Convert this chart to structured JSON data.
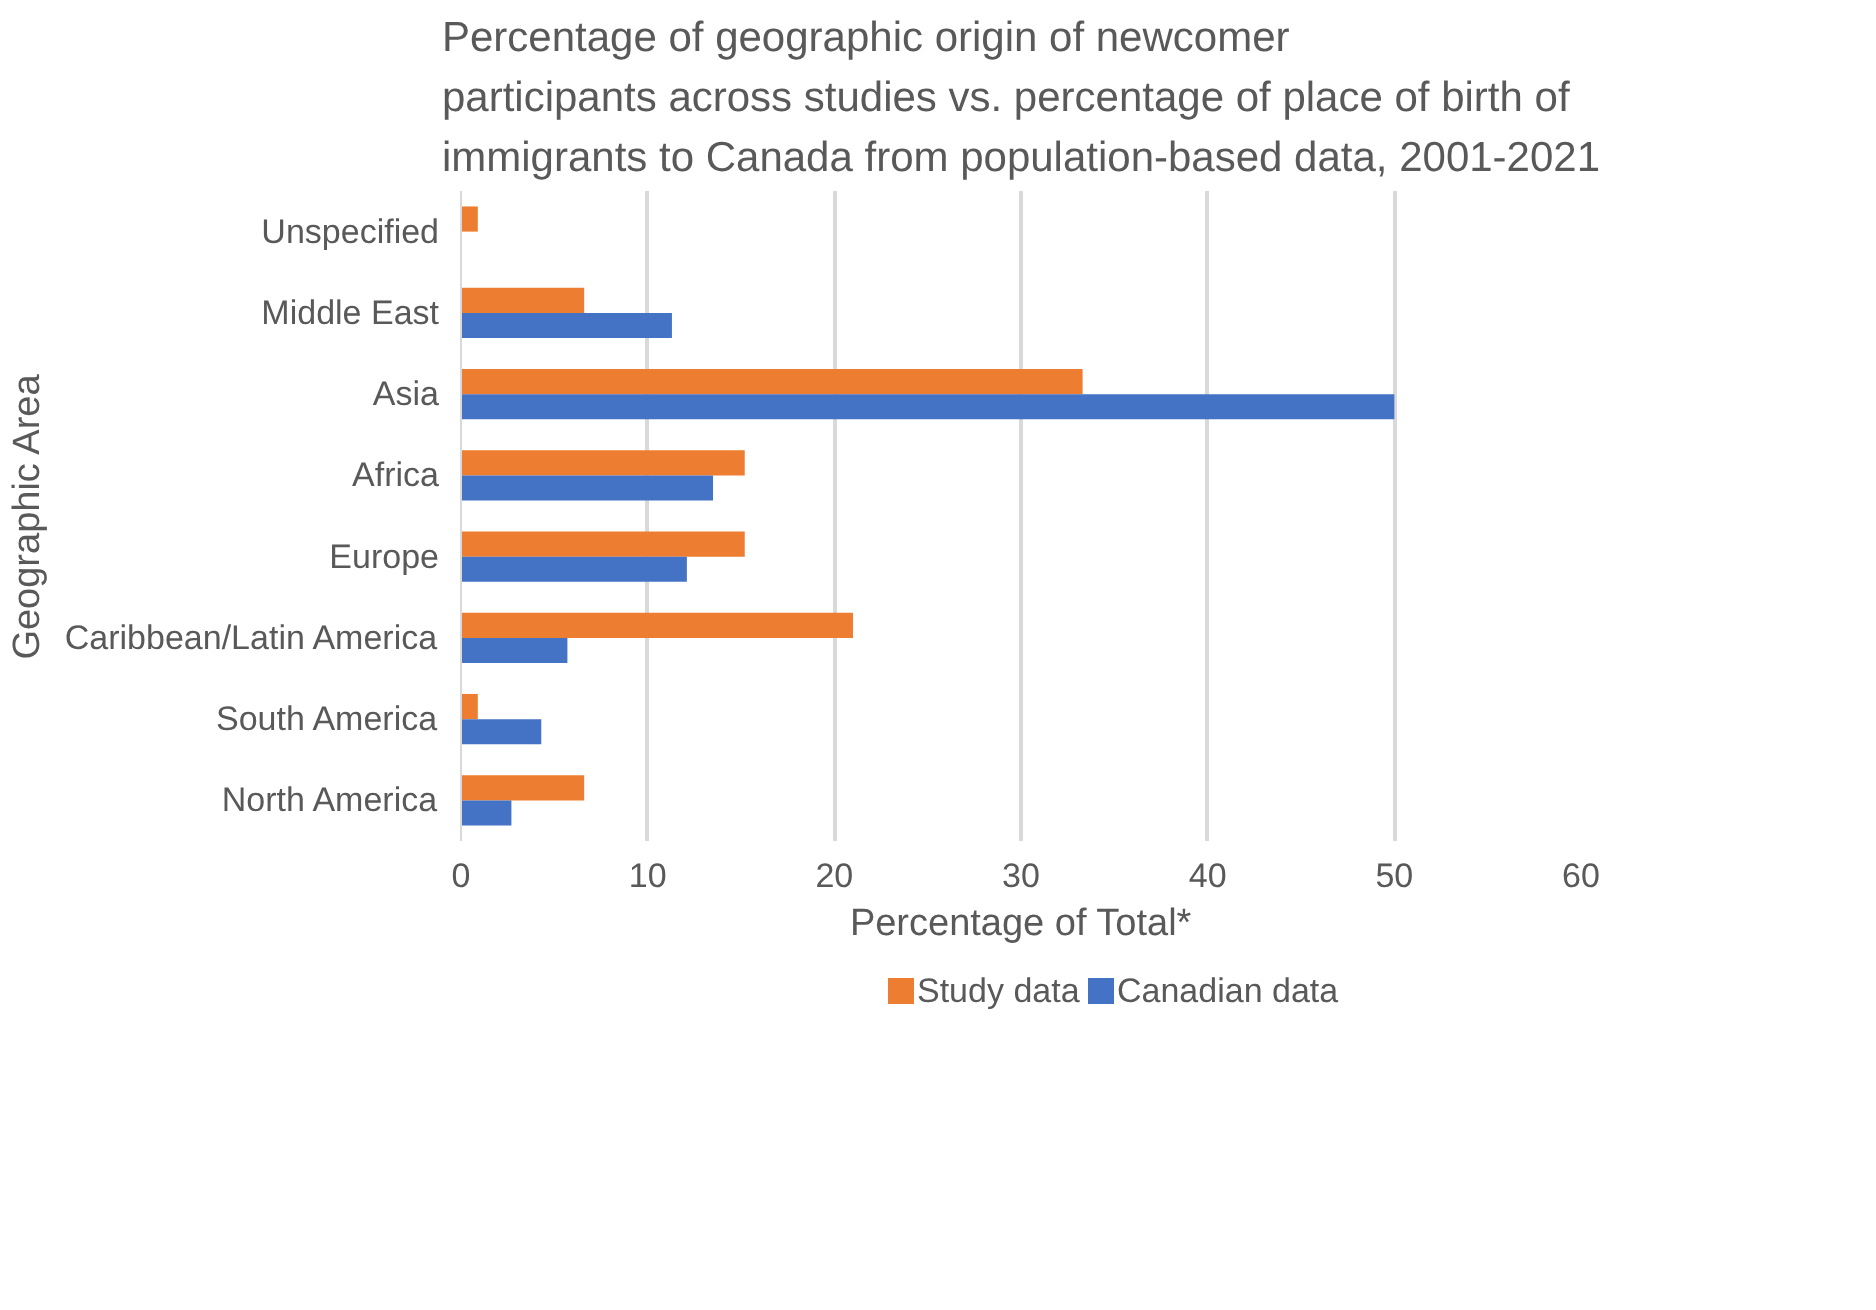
{
  "chart_data": {
    "type": "bar",
    "orientation": "horizontal",
    "title": "Percentage of geographic origin of newcomer\nparticipants across studies vs. percentage of place of birth of\nimmigrants to Canada from population-based data, 2001-2021",
    "xlabel": "Percentage of Total*",
    "ylabel": "Geographic Area",
    "categories": [
      "Unspecified",
      "Middle East",
      "Asia",
      "Africa",
      "Europe",
      "Caribbean/Latin America",
      "South America",
      "North America"
    ],
    "series": [
      {
        "name": "Study data",
        "color": "#ed7d31",
        "values": [
          0.9,
          6.6,
          33.3,
          15.2,
          15.2,
          21.0,
          0.9,
          6.6
        ]
      },
      {
        "name": "Canadian data",
        "color": "#4472c4",
        "values": [
          null,
          11.3,
          50.0,
          13.5,
          12.1,
          5.7,
          4.3,
          2.7
        ]
      }
    ],
    "xlim": [
      0,
      60
    ],
    "xticks": [
      0,
      10,
      20,
      30,
      40,
      50,
      60
    ],
    "grid": "x",
    "legend": "bottom"
  }
}
